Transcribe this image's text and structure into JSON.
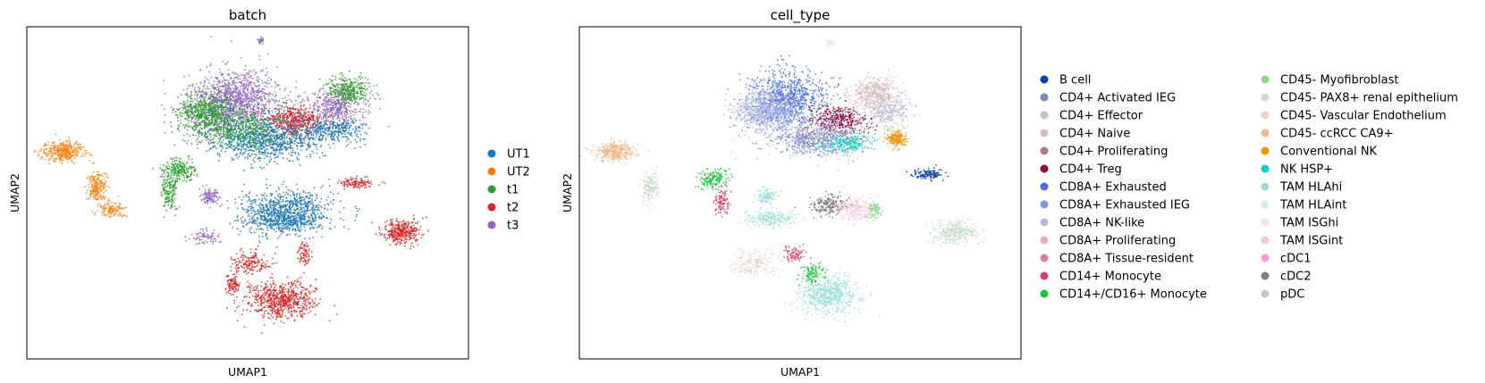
{
  "chart_data": [
    {
      "type": "scatter",
      "title": "batch",
      "xlabel": "UMAP1",
      "ylabel": "UMAP2",
      "ticks": false,
      "legend_position": "right",
      "series": [
        {
          "name": "UT1",
          "color": "#1f77b4"
        },
        {
          "name": "UT2",
          "color": "#ff7f0e"
        },
        {
          "name": "t1",
          "color": "#2ca02c"
        },
        {
          "name": "t2",
          "color": "#d62728"
        },
        {
          "name": "t3",
          "color": "#9467bd"
        }
      ]
    },
    {
      "type": "scatter",
      "title": "cell_type",
      "xlabel": "UMAP1",
      "ylabel": "UMAP2",
      "ticks": false,
      "legend_position": "right",
      "legend_columns": 2,
      "series": [
        {
          "name": "B cell",
          "color": "#023fa5"
        },
        {
          "name": "CD4+ Activated IEG",
          "color": "#7d87b9"
        },
        {
          "name": "CD4+ Effector",
          "color": "#bec1d4"
        },
        {
          "name": "CD4+ Naive",
          "color": "#d6bcc0"
        },
        {
          "name": "CD4+ Proliferating",
          "color": "#bb7784"
        },
        {
          "name": "CD4+ Treg",
          "color": "#8e063b"
        },
        {
          "name": "CD8A+ Exhausted",
          "color": "#4a6fe3"
        },
        {
          "name": "CD8A+ Exhausted IEG",
          "color": "#8595e1"
        },
        {
          "name": "CD8A+ NK-like",
          "color": "#b5bbe3"
        },
        {
          "name": "CD8A+ Proliferating",
          "color": "#e6afb9"
        },
        {
          "name": "CD8A+ Tissue-resident",
          "color": "#e07b91"
        },
        {
          "name": "CD14+ Monocyte",
          "color": "#d33f6a"
        },
        {
          "name": "CD14+/CD16+ Monocyte",
          "color": "#11c638"
        },
        {
          "name": "CD45- Myofibroblast",
          "color": "#8dd593"
        },
        {
          "name": "CD45- PAX8+ renal epithelium",
          "color": "#c6dec7"
        },
        {
          "name": "CD45- Vascular Endothelium",
          "color": "#ead3c6"
        },
        {
          "name": "CD45- ccRCC CA9+",
          "color": "#f0b98d"
        },
        {
          "name": "Conventional NK",
          "color": "#ef9708"
        },
        {
          "name": "NK HSP+",
          "color": "#0fcfc0"
        },
        {
          "name": "TAM HLAhi",
          "color": "#9cded6"
        },
        {
          "name": "TAM HLAint",
          "color": "#d5eae7"
        },
        {
          "name": "TAM ISGhi",
          "color": "#f3e1eb"
        },
        {
          "name": "TAM ISGint",
          "color": "#f6c4e1"
        },
        {
          "name": "cDC1",
          "color": "#f79cd4"
        },
        {
          "name": "cDC2",
          "color": "#7f7f7f"
        },
        {
          "name": "pDC",
          "color": "#c7c7c7"
        }
      ]
    }
  ]
}
